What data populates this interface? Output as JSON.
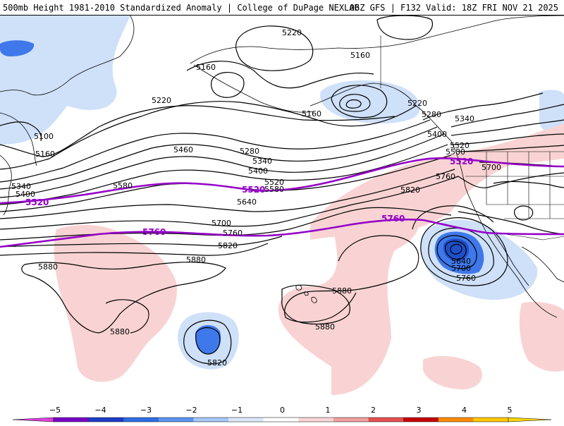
{
  "header": {
    "title": "500mb Height 1981-2010 Standardized Anomaly | College of DuPage NEXLAB",
    "run_info": "06Z GFS | F132 Valid: 18Z FRI NOV 21 2025"
  },
  "map": {
    "contour_labels": {
      "c5220a": "5220",
      "c5160a": "5160",
      "c5160b": "5160",
      "c5160c": "5160",
      "c5160d": "5160",
      "c5220b": "5220",
      "c5220c": "5220",
      "c5280a": "5280",
      "c5340a": "5340",
      "c5400a": "5400",
      "c5520a": "5520",
      "c5580a": "5580",
      "c5100a": "5100",
      "c5340b": "5340",
      "c5400b": "5400",
      "c5460a": "5460",
      "c5280b": "5280",
      "c5340c": "5340",
      "c5400c": "5400",
      "c5520b": "5520",
      "c5580b": "5580",
      "c5580c": "5580",
      "c5640a": "5640",
      "c5700a": "5700",
      "c5760a": "5760",
      "c5820a": "5820",
      "c5880a": "5880",
      "c5880b": "5880",
      "c5880c": "5880",
      "c5880d": "5880",
      "c5880e": "5880",
      "c5820b": "5820",
      "c5820c": "5820",
      "c5760b": "5760",
      "c5700b": "5700",
      "c5640b": "5640",
      "c5700c": "5700",
      "c5760c": "5760"
    },
    "highlight_labels": {
      "p5520a": "5520",
      "p5520b": "5520",
      "p5520c": "5520",
      "p5760a": "5760",
      "p5760b": "5760"
    }
  },
  "colorbar": {
    "ticks": [
      "−5",
      "−4",
      "−3",
      "−2",
      "−1",
      "0",
      "1",
      "2",
      "3",
      "4",
      "5"
    ],
    "colors": [
      "#7a00c8",
      "#1e3cc8",
      "#2c6ee6",
      "#5a96f0",
      "#a6c8f8",
      "#dce9fb",
      "#ffffff",
      "#fbd6d6",
      "#f3a0a0",
      "#e85050",
      "#c80000",
      "#ff8c00",
      "#ffc800"
    ],
    "end_left_color": "#e040e0",
    "end_right_color": "#ffd700"
  },
  "colors": {
    "negative_light": "#cfe0f9",
    "negative_strong": "#3f78ea",
    "positive_light": "#f9d3d3",
    "highlight_contour": "#9400c8",
    "contour": "#000000",
    "coastline": "#000000"
  }
}
